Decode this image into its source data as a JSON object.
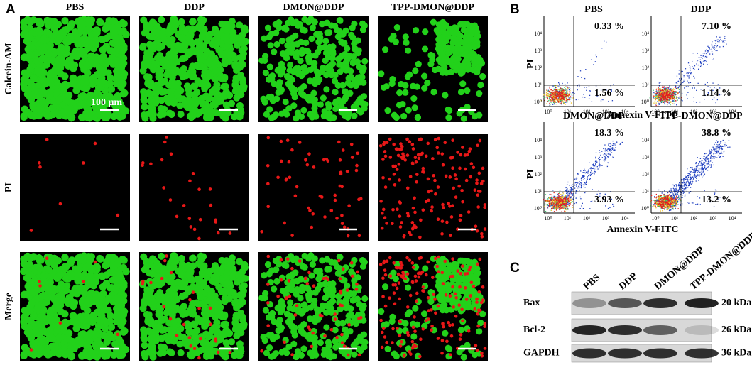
{
  "panel_a": {
    "label": "A",
    "columns": [
      "PBS",
      "DDP",
      "DMON@DDP",
      "TPP-DMON@DDP"
    ],
    "rows": [
      "Calcein-AM",
      "PI",
      "Merge"
    ],
    "scale_bar_label": "100 μm"
  },
  "panel_b": {
    "label": "B",
    "x_label": "Annexin V-FITC",
    "y_label": "PI",
    "ticks": [
      "10⁰",
      "10¹",
      "10²",
      "10³",
      "10⁴"
    ],
    "plots": [
      {
        "title": "PBS",
        "upper_right": "0.33 %",
        "lower_right": "1.56 %"
      },
      {
        "title": "DDP",
        "upper_right": "7.10 %",
        "lower_right": "1.14 %"
      },
      {
        "title": "DMON@DDP",
        "upper_right": "18.3 %",
        "lower_right": "3.93 %"
      },
      {
        "title": "TPP-DMON@DDP",
        "upper_right": "38.8 %",
        "lower_right": "13.2 %"
      }
    ]
  },
  "panel_c": {
    "label": "C",
    "lanes": [
      "PBS",
      "DDP",
      "DMON@DDP",
      "TPP-DMON@DDP"
    ],
    "rows": [
      {
        "protein": "Bax",
        "size": "20 kDa"
      },
      {
        "protein": "Bcl-2",
        "size": "26 kDa"
      },
      {
        "protein": "GAPDH",
        "size": "36 kDa"
      }
    ]
  }
}
